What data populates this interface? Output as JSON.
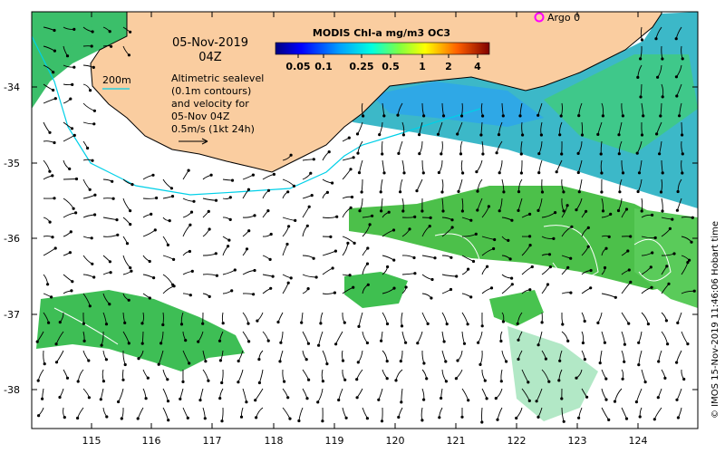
{
  "map": {
    "date_title": "05-Nov-2019",
    "time_title": "04Z",
    "contour_label": "200m",
    "description_lines": [
      "Altimetric sealevel",
      "(0.1m contours)",
      "and velocity for",
      "05-Nov 04Z",
      "0.5m/s (1kt 24h)"
    ],
    "argo_label": "Argo 0",
    "colorbar": {
      "title": "MODIS Chl-a mg/m3 OC3",
      "ticks": [
        "0.05",
        "0.1",
        "0.25",
        "0.5",
        "1",
        "2",
        "4"
      ]
    },
    "x_ticks": [
      "115",
      "116",
      "117",
      "118",
      "119",
      "120",
      "121",
      "122",
      "123",
      "124"
    ],
    "y_ticks": [
      "-34",
      "-35",
      "-36",
      "-37",
      "-38"
    ],
    "credit": "© IMOS 15-Nov-2019 11:46:06 Hobart time",
    "colors": {
      "land": "#FACDA0",
      "chl_low": "#2FB0E6",
      "chl_mid": "#38D1B0",
      "chl_high": "#3DBE48",
      "bathymetry": "#00D0E8",
      "argo": "#FF00FF"
    }
  }
}
